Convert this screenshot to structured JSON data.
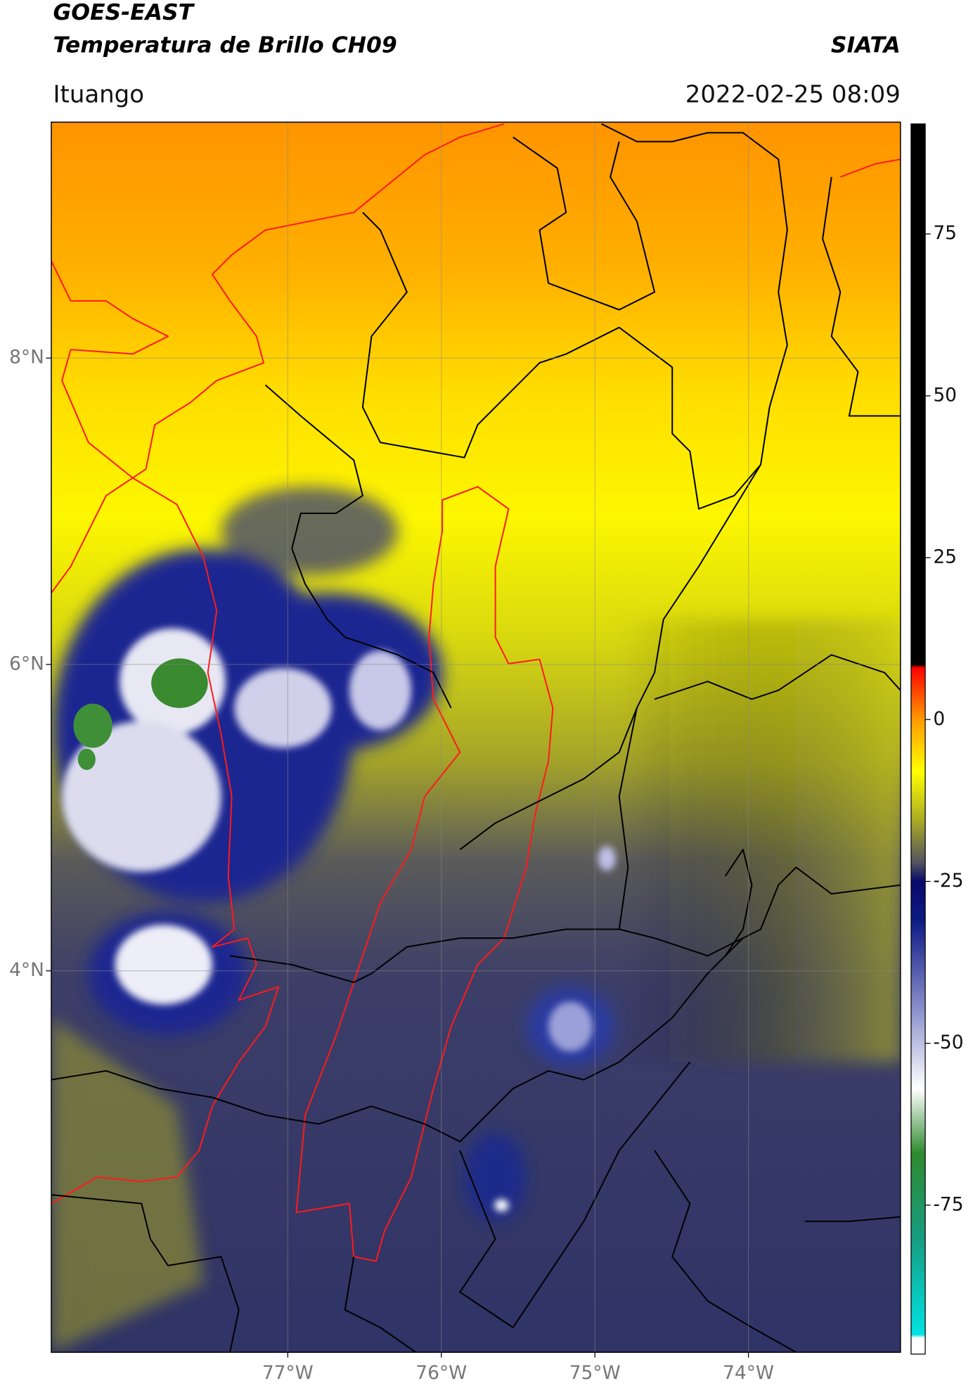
{
  "header": {
    "title_line1": "GOES-EAST",
    "title_line2": "Temperatura de Brillo CH09",
    "source": "SIATA",
    "location": "Ituango",
    "datetime": "2022-02-25 08:09"
  },
  "map": {
    "xlim": [
      -78.54,
      -73.01
    ],
    "ylim": [
      1.51,
      9.54
    ],
    "xticks": [
      {
        "value": -77,
        "label": "77°W"
      },
      {
        "value": -76,
        "label": "76°W"
      },
      {
        "value": -75,
        "label": "75°W"
      },
      {
        "value": -74,
        "label": "74°W"
      }
    ],
    "yticks": [
      {
        "value": 8,
        "label": "8°N"
      },
      {
        "value": 6,
        "label": "6°N"
      },
      {
        "value": 4,
        "label": "4°N"
      }
    ],
    "grid": true
  },
  "colorbar": {
    "lim": [
      -98,
      92
    ],
    "ticks": [
      75,
      50,
      25,
      0,
      -25,
      -50,
      -75
    ],
    "colormap": [
      {
        "value": -98,
        "color": "#ffffff"
      },
      {
        "value": -95.5,
        "color": "#ffffff"
      },
      {
        "value": -95,
        "color": "#00e3e3"
      },
      {
        "value": -80,
        "color": "#169c80"
      },
      {
        "value": -67,
        "color": "#2f8a2f"
      },
      {
        "value": -57,
        "color": "#ffffff"
      },
      {
        "value": -45,
        "color": "#8d92cc"
      },
      {
        "value": -31,
        "color": "#0c1a85"
      },
      {
        "value": -25,
        "color": "#0a0a6a"
      },
      {
        "value": -22,
        "color": "#55555e"
      },
      {
        "value": -15,
        "color": "#b1b121"
      },
      {
        "value": -8,
        "color": "#ffff00"
      },
      {
        "value": 0,
        "color": "#ff9a00"
      },
      {
        "value": 5,
        "color": "#ff3a00"
      },
      {
        "value": 8,
        "color": "#ff0000"
      },
      {
        "value": 8.5,
        "color": "#000000"
      },
      {
        "value": 92,
        "color": "#000000"
      }
    ]
  }
}
